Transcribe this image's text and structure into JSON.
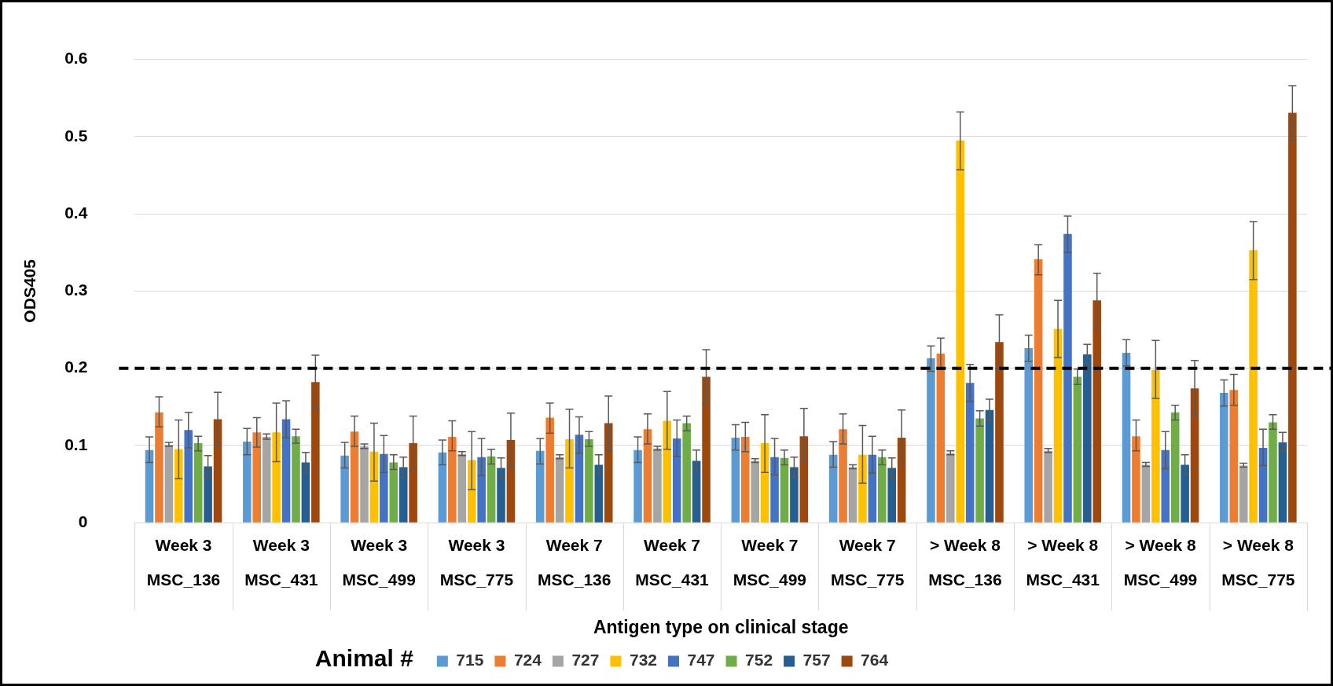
{
  "chart_data": {
    "type": "bar",
    "xlabel": "Antigen type on clinical stage",
    "ylabel": "ODS405",
    "legend_title": "Animal #",
    "categories": [
      "Week 3\nMSC_136",
      "Week 3\nMSC_431",
      "Week 3\nMSC_499",
      "Week 3\nMSC_775",
      "Week 7\nMSC_136",
      "Week 7\nMSC_431",
      "Week 7\nMSC_499",
      "Week 7\nMSC_775",
      "> Week 8\nMSC_136",
      "> Week 8\nMSC_431",
      "> Week 8\nMSC_499",
      "> Week 8\nMSC_775"
    ],
    "series": [
      {
        "name": "715",
        "color": "#5b9bd5",
        "values": [
          0.094,
          0.105,
          0.087,
          0.091,
          0.093,
          0.094,
          0.11,
          0.088,
          0.213,
          0.226,
          0.22,
          0.168
        ],
        "errors": [
          [
            0.078,
            0.111
          ],
          [
            0.088,
            0.122
          ],
          [
            0.071,
            0.104
          ],
          [
            0.075,
            0.107
          ],
          [
            0.076,
            0.109
          ],
          [
            0.078,
            0.111
          ],
          [
            0.094,
            0.127
          ],
          [
            0.072,
            0.105
          ],
          [
            0.196,
            0.229
          ],
          [
            0.209,
            0.243
          ],
          [
            0.203,
            0.237
          ],
          [
            0.151,
            0.185
          ]
        ]
      },
      {
        "name": "724",
        "color": "#ed7d31",
        "values": [
          0.143,
          0.117,
          0.118,
          0.111,
          0.136,
          0.121,
          0.111,
          0.121,
          0.219,
          0.341,
          0.112,
          0.172
        ],
        "errors": [
          [
            0.124,
            0.163
          ],
          [
            0.098,
            0.136
          ],
          [
            0.099,
            0.138
          ],
          [
            0.093,
            0.132
          ],
          [
            0.116,
            0.155
          ],
          [
            0.102,
            0.141
          ],
          [
            0.092,
            0.13
          ],
          [
            0.102,
            0.141
          ],
          [
            0.199,
            0.239
          ],
          [
            0.321,
            0.36
          ],
          [
            0.093,
            0.133
          ],
          [
            0.152,
            0.192
          ]
        ]
      },
      {
        "name": "727",
        "color": "#a5a5a5",
        "values": [
          0.101,
          0.111,
          0.099,
          0.089,
          0.085,
          0.096,
          0.08,
          0.072,
          0.09,
          0.093,
          0.075,
          0.074
        ],
        "errors": [
          [
            0.099,
            0.104
          ],
          [
            0.108,
            0.115
          ],
          [
            0.096,
            0.102
          ],
          [
            0.087,
            0.092
          ],
          [
            0.083,
            0.088
          ],
          [
            0.094,
            0.099
          ],
          [
            0.078,
            0.083
          ],
          [
            0.07,
            0.075
          ],
          [
            0.088,
            0.093
          ],
          [
            0.091,
            0.096
          ],
          [
            0.073,
            0.078
          ],
          [
            0.072,
            0.077
          ]
        ]
      },
      {
        "name": "732",
        "color": "#ffc000",
        "values": [
          0.095,
          0.117,
          0.092,
          0.081,
          0.108,
          0.132,
          0.103,
          0.088,
          0.495,
          0.251,
          0.198,
          0.353
        ],
        "errors": [
          [
            0.057,
            0.133
          ],
          [
            0.079,
            0.155
          ],
          [
            0.054,
            0.129
          ],
          [
            0.043,
            0.118
          ],
          [
            0.071,
            0.147
          ],
          [
            0.095,
            0.17
          ],
          [
            0.065,
            0.14
          ],
          [
            0.051,
            0.126
          ],
          [
            0.457,
            0.532
          ],
          [
            0.214,
            0.288
          ],
          [
            0.161,
            0.236
          ],
          [
            0.315,
            0.39
          ]
        ]
      },
      {
        "name": "747",
        "color": "#4472c4",
        "values": [
          0.12,
          0.134,
          0.089,
          0.085,
          0.114,
          0.109,
          0.085,
          0.088,
          0.181,
          0.374,
          0.094,
          0.097
        ],
        "errors": [
          [
            0.097,
            0.143
          ],
          [
            0.11,
            0.158
          ],
          [
            0.065,
            0.113
          ],
          [
            0.061,
            0.109
          ],
          [
            0.09,
            0.137
          ],
          [
            0.086,
            0.133
          ],
          [
            0.062,
            0.109
          ],
          [
            0.064,
            0.112
          ],
          [
            0.157,
            0.205
          ],
          [
            0.35,
            0.397
          ],
          [
            0.07,
            0.118
          ],
          [
            0.074,
            0.121
          ]
        ]
      },
      {
        "name": "752",
        "color": "#70ad47",
        "values": [
          0.103,
          0.112,
          0.078,
          0.086,
          0.108,
          0.129,
          0.084,
          0.085,
          0.135,
          0.189,
          0.143,
          0.13
        ],
        "errors": [
          [
            0.093,
            0.112
          ],
          [
            0.103,
            0.121
          ],
          [
            0.069,
            0.088
          ],
          [
            0.076,
            0.095
          ],
          [
            0.099,
            0.118
          ],
          [
            0.119,
            0.138
          ],
          [
            0.075,
            0.094
          ],
          [
            0.075,
            0.094
          ],
          [
            0.125,
            0.145
          ],
          [
            0.179,
            0.199
          ],
          [
            0.133,
            0.152
          ],
          [
            0.121,
            0.14
          ]
        ]
      },
      {
        "name": "757",
        "color": "#255e91",
        "values": [
          0.073,
          0.078,
          0.072,
          0.071,
          0.075,
          0.08,
          0.072,
          0.071,
          0.146,
          0.218,
          0.075,
          0.104
        ],
        "errors": [
          [
            0.06,
            0.087
          ],
          [
            0.065,
            0.091
          ],
          [
            0.059,
            0.085
          ],
          [
            0.058,
            0.084
          ],
          [
            0.063,
            0.088
          ],
          [
            0.067,
            0.094
          ],
          [
            0.059,
            0.085
          ],
          [
            0.058,
            0.084
          ],
          [
            0.133,
            0.16
          ],
          [
            0.205,
            0.231
          ],
          [
            0.063,
            0.088
          ],
          [
            0.092,
            0.117
          ]
        ]
      },
      {
        "name": "764",
        "color": "#9e480e",
        "values": [
          0.134,
          0.182,
          0.103,
          0.107,
          0.129,
          0.189,
          0.112,
          0.11,
          0.234,
          0.288,
          0.174,
          0.531
        ],
        "errors": [
          [
            0.099,
            0.169
          ],
          [
            0.147,
            0.217
          ],
          [
            0.067,
            0.138
          ],
          [
            0.072,
            0.142
          ],
          [
            0.093,
            0.164
          ],
          [
            0.154,
            0.224
          ],
          [
            0.077,
            0.148
          ],
          [
            0.075,
            0.146
          ],
          [
            0.199,
            0.269
          ],
          [
            0.252,
            0.323
          ],
          [
            0.139,
            0.21
          ],
          [
            0.496,
            0.566
          ]
        ]
      }
    ],
    "ylim": [
      0,
      0.6
    ],
    "yticks": [
      0,
      0.1,
      0.2,
      0.3,
      0.4,
      0.5,
      0.6
    ],
    "ref_lines": [
      {
        "axis": "y",
        "value": 0.2,
        "color": "#000000",
        "line_style": "dashed"
      }
    ],
    "grid": "y",
    "legend": "bottom"
  }
}
